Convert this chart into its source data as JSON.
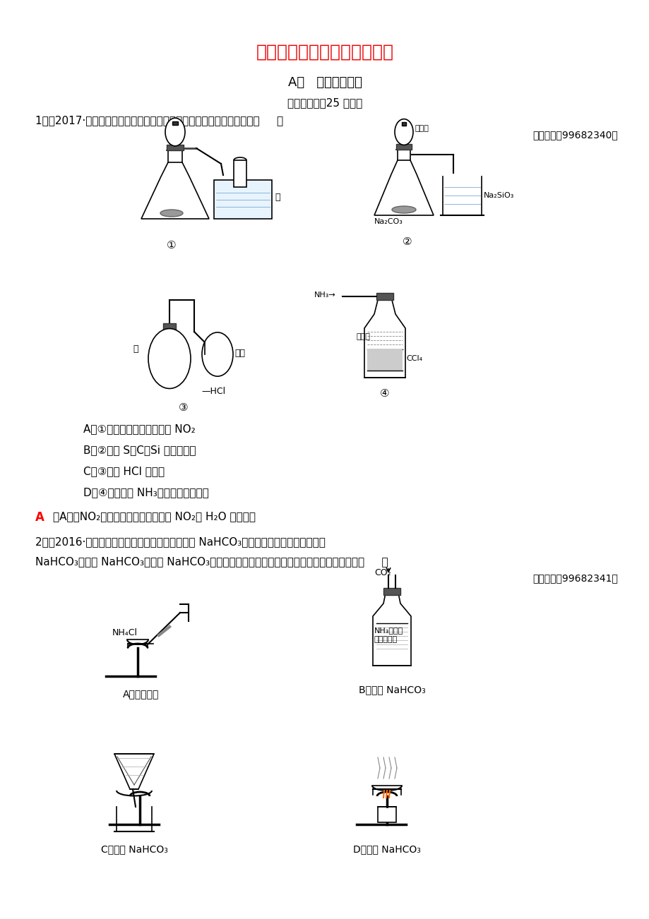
{
  "title": "气体的实验室制法和性质探究",
  "title_color": "#EE0000",
  "bg_color": "#FFFFFF",
  "section": "A组   专项基础达标",
  "time_note": "（建议用时：25 分钟）",
  "q1": "1．（2017·石家庄模拟）下列实验方案不能达到相应实验预期目的的是（     ）",
  "q1_guide": "『导学号：99682340』",
  "q1_opts": [
    "A．①用铜和浓确酸制取少量 NO₂",
    "B．②比较 S、C、Si 的非金属性",
    "C．③验证 HCl 溶解性",
    "D．④用于吸收 NH₃尾气，并防止倒吸"
  ],
  "q1_ans_letter": "A",
  "q1_ans_body": "［A项，NO₂不能用排水法收集，因为 NO₂与 H₂O 反应。］",
  "q2_line1": "2．（2016·江苏高考）根据侯氏制砍原理制备少量 NaHCO₃的实验，经过制取氨气、制取",
  "q2_line2": "NaHCO₃、分离 NaHCO₃、干燥 NaHCO₃四个步骤。下列图示装置和原理能达到实验目的的是（     ）",
  "q2_guide": "『导学号：99682341』",
  "q2_opts": [
    "A．制取氨气",
    "B．制取 NaHCO₃",
    "C．分离 NaHCO₃",
    "D．干燥 NaHCO₃"
  ],
  "label1": "①",
  "label2": "②",
  "label3": "③",
  "label4": "④",
  "water": "水",
  "xiliusuan": "稀确酸",
  "qiqiu": "气球",
  "nh3_food": "NH₃和食盐",
  "sat_sol": "的饱和溶液",
  "nh4cl": "NH₄Cl",
  "na2co3": "Na₂CO₃",
  "na2sio3": "Na₂SiO₃",
  "co2": "CO₂",
  "nh3": "NH₃",
  "ccl4": "CCl₄",
  "hcl": "HCl"
}
